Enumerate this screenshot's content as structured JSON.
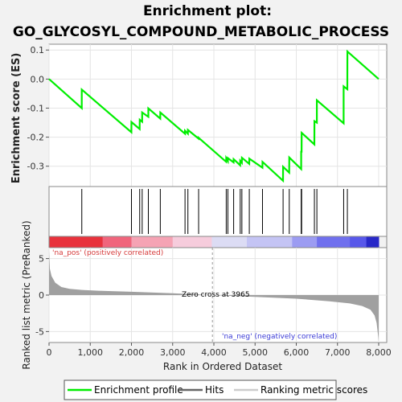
{
  "title_line1": "Enrichment plot:",
  "title_line2": "GO_GLYCOSYL_COMPOUND_METABOLIC_PROCESS",
  "es_axis_label": "Enrichment score (ES)",
  "metric_axis_label": "Ranked list metric (PreRanked)",
  "x_axis_label": "Rank in Ordered Dataset",
  "pos_label": "'na_pos' (positively correlated)",
  "neg_label": "'na_neg' (negatively correlated)",
  "zero_cross_label": "Zero cross at 3965",
  "legend": {
    "enrichment": "Enrichment profile",
    "hits": "Hits",
    "ranking": "Ranking metric scores"
  },
  "colors": {
    "enrichment_line": "#00ee00",
    "hits": "#000000",
    "metric_fill": "#a0a0a0",
    "pos_label": "#d63a3a",
    "neg_label": "#3a3ad6"
  },
  "chart_data": {
    "type": "line",
    "x_range": [
      0,
      8000
    ],
    "zero_cross": 3965,
    "es_axis": {
      "ylim": [
        -0.37,
        0.12
      ],
      "ticks": [
        0.1,
        0.0,
        -0.1,
        -0.2,
        -0.3
      ],
      "tick_labels": [
        "0.1",
        "0.0",
        "-0.1",
        "-0.2",
        "-0.3"
      ]
    },
    "metric_axis": {
      "ylim": [
        -6.5,
        6.5
      ],
      "ticks": [
        5,
        0,
        -5
      ],
      "tick_labels": [
        "5",
        "0",
        "-5"
      ]
    },
    "x_ticks": [
      0,
      1000,
      2000,
      3000,
      4000,
      5000,
      6000,
      7000,
      8000
    ],
    "x_tick_labels": [
      "0",
      "1,000",
      "2,000",
      "3,000",
      "4,000",
      "5,000",
      "6,000",
      "7,000",
      "8,000"
    ],
    "hits": [
      795,
      2000,
      2200,
      2260,
      2410,
      2700,
      3300,
      3370,
      3630,
      4300,
      4340,
      4480,
      4640,
      4680,
      4860,
      5180,
      5680,
      5830,
      6120,
      6130,
      6440,
      6500,
      7150,
      7240
    ],
    "enrichment_profile": [
      [
        0,
        0.0
      ],
      [
        794,
        -0.1
      ],
      [
        795,
        -0.036
      ],
      [
        1999,
        -0.183
      ],
      [
        2000,
        -0.148
      ],
      [
        2199,
        -0.172
      ],
      [
        2200,
        -0.14
      ],
      [
        2259,
        -0.147
      ],
      [
        2260,
        -0.115
      ],
      [
        2409,
        -0.13
      ],
      [
        2410,
        -0.101
      ],
      [
        2699,
        -0.136
      ],
      [
        2700,
        -0.115
      ],
      [
        3299,
        -0.188
      ],
      [
        3300,
        -0.178
      ],
      [
        3369,
        -0.188
      ],
      [
        3370,
        -0.175
      ],
      [
        3629,
        -0.205
      ],
      [
        3630,
        -0.202
      ],
      [
        4299,
        -0.285
      ],
      [
        4300,
        -0.272
      ],
      [
        4339,
        -0.282
      ],
      [
        4340,
        -0.272
      ],
      [
        4479,
        -0.287
      ],
      [
        4480,
        -0.276
      ],
      [
        4639,
        -0.297
      ],
      [
        4640,
        -0.281
      ],
      [
        4679,
        -0.288
      ],
      [
        4680,
        -0.271
      ],
      [
        4859,
        -0.292
      ],
      [
        4860,
        -0.274
      ],
      [
        5179,
        -0.305
      ],
      [
        5180,
        -0.285
      ],
      [
        5679,
        -0.35
      ],
      [
        5680,
        -0.302
      ],
      [
        5829,
        -0.322
      ],
      [
        5830,
        -0.27
      ],
      [
        6119,
        -0.31
      ],
      [
        6120,
        -0.25
      ],
      [
        6129,
        -0.25
      ],
      [
        6130,
        -0.185
      ],
      [
        6439,
        -0.225
      ],
      [
        6440,
        -0.145
      ],
      [
        6499,
        -0.15
      ],
      [
        6500,
        -0.073
      ],
      [
        7149,
        -0.152
      ],
      [
        7150,
        -0.025
      ],
      [
        7239,
        -0.035
      ],
      [
        7240,
        0.095
      ],
      [
        8000,
        0.0
      ]
    ],
    "metric_profile": [
      [
        0,
        6.0
      ],
      [
        20,
        3.6
      ],
      [
        60,
        2.6
      ],
      [
        150,
        1.7
      ],
      [
        300,
        1.1
      ],
      [
        500,
        0.85
      ],
      [
        800,
        0.7
      ],
      [
        1200,
        0.6
      ],
      [
        2000,
        0.45
      ],
      [
        3000,
        0.25
      ],
      [
        3965,
        0.0
      ],
      [
        5000,
        -0.25
      ],
      [
        6000,
        -0.5
      ],
      [
        6800,
        -0.85
      ],
      [
        7300,
        -1.15
      ],
      [
        7600,
        -1.5
      ],
      [
        7800,
        -2.0
      ],
      [
        7900,
        -2.8
      ],
      [
        7950,
        -3.8
      ],
      [
        7985,
        -5.5
      ],
      [
        8000,
        -6.3
      ]
    ],
    "heat_band": [
      {
        "from": 0,
        "to": 1300,
        "color": "#e8323c"
      },
      {
        "from": 1300,
        "to": 2000,
        "color": "#f0657c"
      },
      {
        "from": 2000,
        "to": 3000,
        "color": "#f5a3b4"
      },
      {
        "from": 3000,
        "to": 3950,
        "color": "#f6ccdc"
      },
      {
        "from": 3950,
        "to": 4800,
        "color": "#dcdcf4"
      },
      {
        "from": 4800,
        "to": 5900,
        "color": "#c4c4f4"
      },
      {
        "from": 5900,
        "to": 6500,
        "color": "#9c9cf2"
      },
      {
        "from": 6500,
        "to": 7300,
        "color": "#7070ee"
      },
      {
        "from": 7300,
        "to": 7700,
        "color": "#5858ea"
      },
      {
        "from": 7700,
        "to": 8000,
        "color": "#2828c8"
      }
    ]
  }
}
